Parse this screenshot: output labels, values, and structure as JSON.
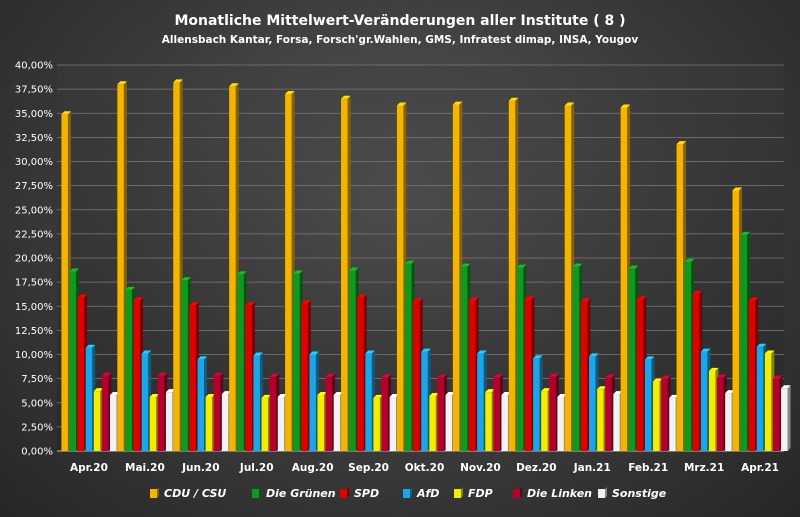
{
  "chart_data": {
    "type": "bar",
    "title": "Monatliche Mittelwert-Veränderungen aller Institute ( 8 )",
    "subtitle": "Allensbach Kantar, Forsa, Forsch'gr.Wahlen, GMS, Infratest dimap, INSA, Yougov",
    "categories": [
      "Apr.20",
      "Mai.20",
      "Jun.20",
      "Jul.20",
      "Aug.20",
      "Sep.20",
      "Okt.20",
      "Nov.20",
      "Dez.20",
      "Jan.21",
      "Feb.21",
      "Mrz.21",
      "Apr.21"
    ],
    "ylim": [
      0,
      40
    ],
    "yticks": [
      "0,00%",
      "2,50%",
      "5,00%",
      "7,50%",
      "10,00%",
      "12,50%",
      "15,00%",
      "17,50%",
      "20,00%",
      "22,50%",
      "25,00%",
      "27,50%",
      "30,00%",
      "32,50%",
      "35,00%",
      "37,50%",
      "40,00%"
    ],
    "grid": true,
    "legend_position": "bottom",
    "series": [
      {
        "name": "CDU / CSU",
        "color": "#f5b400",
        "values": [
          34.9,
          38.0,
          38.2,
          37.8,
          37.0,
          36.5,
          35.8,
          35.9,
          36.3,
          35.8,
          35.6,
          31.8,
          27.0
        ]
      },
      {
        "name": "Die Grünen",
        "color": "#0f9a1e",
        "values": [
          18.6,
          16.7,
          17.7,
          18.3,
          18.4,
          18.7,
          19.4,
          19.1,
          19.0,
          19.1,
          18.9,
          19.6,
          22.4
        ]
      },
      {
        "name": "SPD",
        "color": "#e00000",
        "values": [
          15.9,
          15.6,
          15.1,
          15.1,
          15.3,
          15.9,
          15.5,
          15.6,
          15.7,
          15.5,
          15.7,
          16.3,
          15.6
        ]
      },
      {
        "name": "AfD",
        "color": "#1aa6e8",
        "values": [
          10.7,
          10.1,
          9.5,
          9.9,
          10.0,
          10.1,
          10.3,
          10.1,
          9.6,
          9.8,
          9.5,
          10.3,
          10.8
        ]
      },
      {
        "name": "FDP",
        "color": "#f3ee00",
        "values": [
          6.2,
          5.6,
          5.6,
          5.5,
          5.8,
          5.5,
          5.7,
          6.1,
          6.2,
          6.4,
          7.2,
          8.3,
          10.1
        ]
      },
      {
        "name": "Die Linken",
        "color": "#b5002c",
        "values": [
          7.8,
          7.8,
          7.8,
          7.7,
          7.7,
          7.6,
          7.6,
          7.6,
          7.7,
          7.6,
          7.5,
          7.6,
          7.5
        ]
      },
      {
        "name": "Sonstige",
        "color": "#f2f2f2",
        "values": [
          5.8,
          6.1,
          5.9,
          5.6,
          5.8,
          5.6,
          5.8,
          5.8,
          5.6,
          5.9,
          5.5,
          6.0,
          6.5
        ]
      }
    ]
  }
}
